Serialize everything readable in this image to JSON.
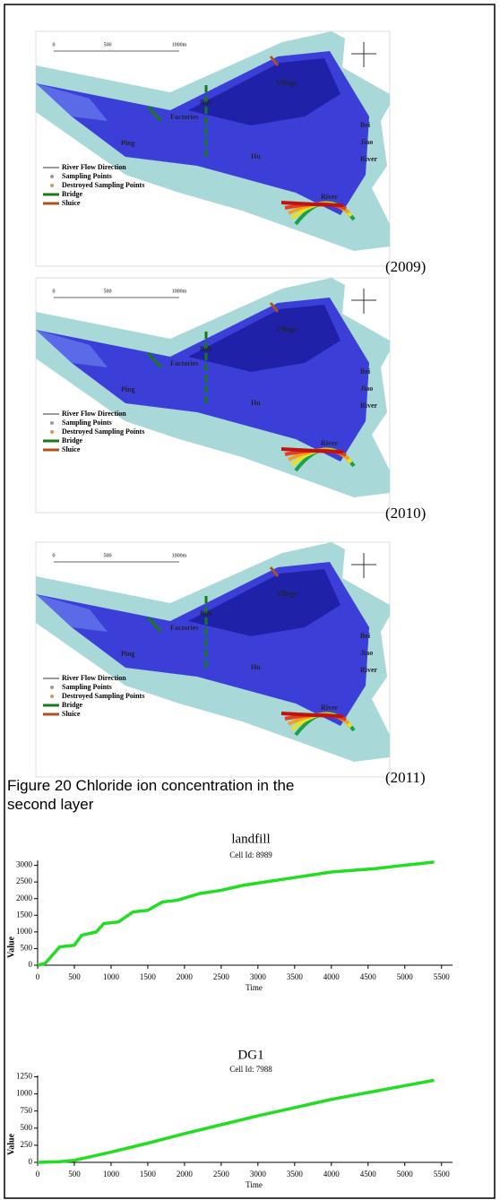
{
  "maps": [
    {
      "year": "(2009)",
      "scale": [
        "0",
        "500",
        "1000m"
      ],
      "legend": [
        "River Flow Direction",
        "Sampling Points",
        "Destroyed Sampling Points",
        "Bridge",
        "Sluice"
      ],
      "places": [
        "Village",
        "Bob",
        "Factories",
        "Ping",
        "Hu",
        "Bei",
        "Jiao",
        "River",
        "River"
      ]
    },
    {
      "year": "(2010)",
      "scale": [
        "0",
        "500",
        "1000m"
      ],
      "legend": [
        "River Flow Direction",
        "Sampling Points",
        "Destroyed Sampling Points",
        "Bridge",
        "Sluice"
      ],
      "places": [
        "Village",
        "Bob",
        "Factories",
        "Ping",
        "Hu",
        "Bei",
        "Jiao",
        "River",
        "River"
      ]
    },
    {
      "year": "(2011)",
      "scale": [
        "0",
        "500",
        "1000m"
      ],
      "legend": [
        "River Flow Direction",
        "Sampling Points",
        "Destroyed Sampling Points",
        "Bridge",
        "Sluice"
      ],
      "places": [
        "Village",
        "Bob",
        "Factories",
        "Ping",
        "Hu",
        "Bei",
        "Jiao",
        "River",
        "River"
      ]
    }
  ],
  "caption": "Figure 20 Chloride ion concentration in the second layer",
  "chart_data": [
    {
      "type": "line",
      "title": "landfill",
      "subtitle": "Cell Id: 8989",
      "xlabel": "Time",
      "ylabel": "Value",
      "color": "#22dd22",
      "x": [
        0,
        100,
        200,
        300,
        500,
        600,
        800,
        900,
        1100,
        1300,
        1500,
        1700,
        1900,
        2200,
        2500,
        2800,
        3100,
        3400,
        3700,
        4000,
        4300,
        4600,
        4900,
        5200,
        5400
      ],
      "values": [
        0,
        50,
        300,
        550,
        600,
        900,
        1000,
        1250,
        1300,
        1600,
        1650,
        1900,
        1950,
        2150,
        2250,
        2400,
        2500,
        2600,
        2700,
        2800,
        2850,
        2900,
        2980,
        3050,
        3100
      ],
      "xlim": [
        0,
        5650
      ],
      "xticks": [
        0,
        500,
        1000,
        1500,
        2000,
        2500,
        3000,
        3500,
        4000,
        4500,
        5000,
        5500
      ],
      "ylim": [
        0,
        3150
      ],
      "yticks": [
        0,
        500,
        1000,
        1500,
        2000,
        2500,
        3000
      ]
    },
    {
      "type": "line",
      "title": "DG1",
      "subtitle": "Cell Id: 7988",
      "xlabel": "Time",
      "ylabel": "Value",
      "color": "#22dd22",
      "x": [
        0,
        300,
        500,
        1000,
        1500,
        2000,
        2500,
        3000,
        3500,
        4000,
        4500,
        5000,
        5400
      ],
      "values": [
        0,
        10,
        30,
        150,
        280,
        420,
        550,
        680,
        800,
        920,
        1020,
        1120,
        1200
      ],
      "xlim": [
        0,
        5650
      ],
      "xticks": [
        0,
        500,
        1000,
        1500,
        2000,
        2500,
        3000,
        3500,
        4000,
        4500,
        5000,
        5500
      ],
      "ylim": [
        0,
        1270
      ],
      "yticks": [
        0,
        250,
        500,
        750,
        1000,
        1250
      ]
    }
  ]
}
